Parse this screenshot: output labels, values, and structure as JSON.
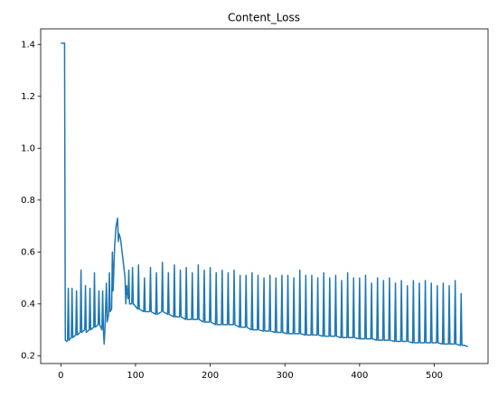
{
  "chart_data": {
    "type": "line",
    "title": "Content_Loss",
    "xlim": [
      -27,
      572
    ],
    "xticks": [
      0,
      100,
      200,
      300,
      400,
      500
    ],
    "ylim": [
      0.17,
      1.46
    ],
    "yticks": [
      {
        "value": 0.2,
        "label": "0.2"
      },
      {
        "value": 0.4,
        "label": "0.4"
      },
      {
        "value": 0.6,
        "label": "0.6"
      },
      {
        "value": 0.8,
        "label": "0.8"
      },
      {
        "value": 1.0,
        "label": "1.0"
      },
      {
        "value": 1.2,
        "label": "1.2"
      },
      {
        "value": 1.4,
        "label": "1.4"
      }
    ],
    "series": [
      {
        "color": "#1f77b4",
        "x": [
          0,
          5,
          6,
          8,
          9,
          10,
          11,
          14,
          15,
          16,
          20,
          21,
          22,
          26,
          27,
          28,
          32,
          33,
          34,
          38,
          39,
          40,
          44,
          45,
          46,
          50,
          51,
          52,
          55,
          56,
          57,
          58,
          59,
          61,
          62,
          64,
          65,
          66,
          68,
          69,
          70,
          72,
          74,
          76,
          77,
          78,
          80,
          82,
          84,
          86,
          87,
          88,
          90,
          91,
          92,
          95,
          96,
          97,
          103,
          104,
          105,
          111,
          112,
          113,
          119,
          120,
          121,
          127,
          128,
          129,
          135,
          136,
          137,
          143,
          144,
          145,
          151,
          152,
          153,
          159,
          160,
          161,
          167,
          168,
          169,
          175,
          176,
          177,
          183,
          184,
          185,
          191,
          192,
          193,
          199,
          200,
          201,
          207,
          208,
          209,
          215,
          216,
          217,
          223,
          224,
          225,
          231,
          232,
          233,
          239,
          240,
          241,
          247,
          248,
          249,
          255,
          256,
          257,
          263,
          264,
          265,
          271,
          272,
          273,
          279,
          280,
          281,
          287,
          288,
          289,
          295,
          296,
          297,
          303,
          304,
          305,
          311,
          312,
          313,
          319,
          320,
          321,
          327,
          328,
          329,
          335,
          336,
          337,
          343,
          344,
          345,
          351,
          352,
          353,
          359,
          360,
          361,
          367,
          368,
          369,
          375,
          376,
          377,
          383,
          384,
          385,
          391,
          392,
          393,
          399,
          400,
          401,
          407,
          408,
          409,
          415,
          416,
          417,
          423,
          424,
          425,
          431,
          432,
          433,
          439,
          440,
          441,
          447,
          448,
          449,
          455,
          456,
          457,
          463,
          464,
          465,
          471,
          472,
          473,
          479,
          480,
          481,
          487,
          488,
          489,
          495,
          496,
          497,
          503,
          504,
          505,
          511,
          512,
          513,
          519,
          520,
          521,
          527,
          528,
          529,
          535,
          536,
          537,
          540,
          545
        ],
        "values": [
          1.405,
          1.405,
          0.26,
          0.255,
          0.26,
          0.46,
          0.26,
          0.27,
          0.46,
          0.27,
          0.28,
          0.45,
          0.28,
          0.29,
          0.53,
          0.29,
          0.3,
          0.47,
          0.29,
          0.3,
          0.46,
          0.3,
          0.31,
          0.52,
          0.31,
          0.32,
          0.45,
          0.32,
          0.3,
          0.45,
          0.3,
          0.245,
          0.3,
          0.48,
          0.33,
          0.36,
          0.52,
          0.37,
          0.38,
          0.6,
          0.45,
          0.62,
          0.7,
          0.73,
          0.64,
          0.67,
          0.65,
          0.6,
          0.55,
          0.5,
          0.4,
          0.47,
          0.42,
          0.53,
          0.4,
          0.4,
          0.54,
          0.4,
          0.38,
          0.55,
          0.38,
          0.37,
          0.5,
          0.37,
          0.37,
          0.54,
          0.37,
          0.36,
          0.52,
          0.36,
          0.37,
          0.56,
          0.37,
          0.36,
          0.52,
          0.36,
          0.35,
          0.55,
          0.35,
          0.35,
          0.53,
          0.35,
          0.34,
          0.54,
          0.34,
          0.34,
          0.52,
          0.34,
          0.34,
          0.55,
          0.34,
          0.33,
          0.53,
          0.33,
          0.33,
          0.54,
          0.33,
          0.32,
          0.52,
          0.32,
          0.32,
          0.53,
          0.32,
          0.32,
          0.52,
          0.32,
          0.32,
          0.53,
          0.32,
          0.31,
          0.51,
          0.31,
          0.31,
          0.51,
          0.31,
          0.3,
          0.52,
          0.3,
          0.3,
          0.51,
          0.3,
          0.295,
          0.5,
          0.295,
          0.295,
          0.51,
          0.295,
          0.29,
          0.5,
          0.29,
          0.29,
          0.51,
          0.29,
          0.285,
          0.51,
          0.285,
          0.285,
          0.5,
          0.285,
          0.285,
          0.53,
          0.285,
          0.28,
          0.51,
          0.28,
          0.28,
          0.51,
          0.28,
          0.28,
          0.5,
          0.28,
          0.275,
          0.52,
          0.275,
          0.275,
          0.5,
          0.275,
          0.275,
          0.51,
          0.275,
          0.27,
          0.49,
          0.27,
          0.27,
          0.52,
          0.27,
          0.27,
          0.5,
          0.27,
          0.265,
          0.5,
          0.265,
          0.265,
          0.51,
          0.265,
          0.265,
          0.48,
          0.265,
          0.26,
          0.5,
          0.26,
          0.26,
          0.49,
          0.26,
          0.26,
          0.5,
          0.26,
          0.255,
          0.48,
          0.255,
          0.255,
          0.49,
          0.255,
          0.255,
          0.47,
          0.255,
          0.25,
          0.49,
          0.25,
          0.25,
          0.48,
          0.25,
          0.25,
          0.49,
          0.25,
          0.25,
          0.48,
          0.25,
          0.25,
          0.47,
          0.25,
          0.245,
          0.48,
          0.245,
          0.245,
          0.47,
          0.245,
          0.245,
          0.49,
          0.245,
          0.24,
          0.44,
          0.24,
          0.24,
          0.235
        ]
      }
    ]
  }
}
